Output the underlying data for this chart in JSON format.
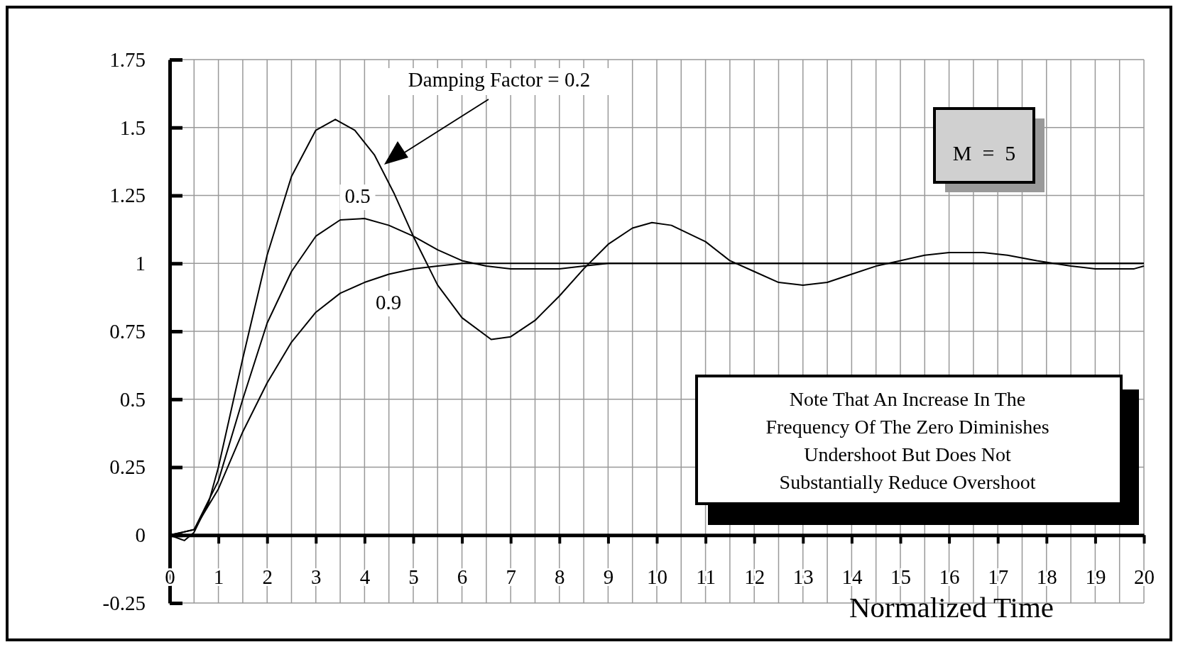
{
  "chart_data": {
    "type": "line",
    "xlabel": "Normalized  Time",
    "xlim": [
      0,
      20
    ],
    "ylim": [
      -0.25,
      1.75
    ],
    "xticks": [
      0,
      {
        "value": 0.5,
        "label": null
      },
      1,
      {
        "value": 1.5,
        "label": null
      },
      2,
      {
        "value": 2.5,
        "label": null
      },
      3,
      {
        "value": 3.5,
        "label": null
      },
      4,
      {
        "value": 4.5,
        "label": null
      },
      5,
      {
        "value": 5.5,
        "label": null
      },
      6,
      {
        "value": 6.5,
        "label": null
      },
      7,
      {
        "value": 7.5,
        "label": null
      },
      8,
      {
        "value": 8.5,
        "label": null
      },
      9,
      {
        "value": 9.5,
        "label": null
      },
      10,
      {
        "value": 10.5,
        "label": null
      },
      11,
      {
        "value": 11.5,
        "label": null
      },
      12,
      {
        "value": 12.5,
        "label": null
      },
      13,
      {
        "value": 13.5,
        "label": null
      },
      14,
      {
        "value": 14.5,
        "label": null
      },
      15,
      {
        "value": 15.5,
        "label": null
      },
      16,
      {
        "value": 16.5,
        "label": null
      },
      17,
      {
        "value": 17.5,
        "label": null
      },
      18,
      {
        "value": 18.5,
        "label": null
      },
      19,
      {
        "value": 19.5,
        "label": null
      },
      20
    ],
    "yticks": [
      -0.25,
      0,
      0.25,
      0.5,
      0.75,
      1,
      1.25,
      1.5,
      1.75
    ],
    "grid": true,
    "legend": false,
    "marker": "none",
    "line_style": "solid",
    "series": [
      {
        "color": "#000000",
        "x": [
          0,
          0.3,
          0.5,
          0.8,
          1,
          1.5,
          2,
          2.5,
          3,
          3.4,
          3.8,
          4.2,
          4.6,
          5,
          5.5,
          6,
          6.6,
          7,
          7.5,
          8,
          8.5,
          9,
          9.5,
          9.9,
          10.3,
          11,
          11.5,
          12,
          12.5,
          13,
          13.5,
          14,
          14.5,
          15,
          15.5,
          16,
          16.7,
          17.2,
          17.8,
          18.5,
          19,
          19.8,
          20
        ],
        "values": [
          0,
          -0.02,
          0.01,
          0.12,
          0.25,
          0.65,
          1.03,
          1.32,
          1.49,
          1.53,
          1.49,
          1.4,
          1.26,
          1.1,
          0.92,
          0.8,
          0.72,
          0.73,
          0.79,
          0.88,
          0.98,
          1.07,
          1.13,
          1.15,
          1.14,
          1.08,
          1.01,
          0.97,
          0.93,
          0.92,
          0.93,
          0.96,
          0.99,
          1.01,
          1.03,
          1.04,
          1.04,
          1.03,
          1.01,
          0.99,
          0.98,
          0.98,
          0.99
        ]
      },
      {
        "color": "#000000",
        "x": [
          0,
          0.5,
          1,
          1.5,
          2,
          2.5,
          3,
          3.5,
          4,
          4.5,
          5,
          5.5,
          6,
          6.5,
          7,
          8,
          8.5,
          9,
          20
        ],
        "values": [
          0,
          0.02,
          0.2,
          0.5,
          0.78,
          0.97,
          1.1,
          1.16,
          1.165,
          1.14,
          1.1,
          1.05,
          1.01,
          0.99,
          0.98,
          0.98,
          0.99,
          1,
          1
        ]
      },
      {
        "color": "#000000",
        "x": [
          0,
          0.5,
          1,
          1.5,
          2,
          2.5,
          3,
          3.5,
          4,
          4.5,
          5,
          5.5,
          6,
          20
        ],
        "values": [
          0,
          0.02,
          0.17,
          0.38,
          0.56,
          0.71,
          0.82,
          0.89,
          0.93,
          0.96,
          0.98,
          0.99,
          1,
          1
        ]
      }
    ],
    "annotations": [
      "Damping Factor = 0.2",
      {
        "text": "0.5",
        "x": 3.9,
        "y": 1.17
      },
      {
        "text": "0.9",
        "x": 4.2,
        "y": 0.93
      },
      "M  =  5",
      "Note That An Increase In The\nFrequency Of The Zero Diminishes\nUndershoot But Does Not\nSubstantially Reduce Overshoot"
    ]
  }
}
